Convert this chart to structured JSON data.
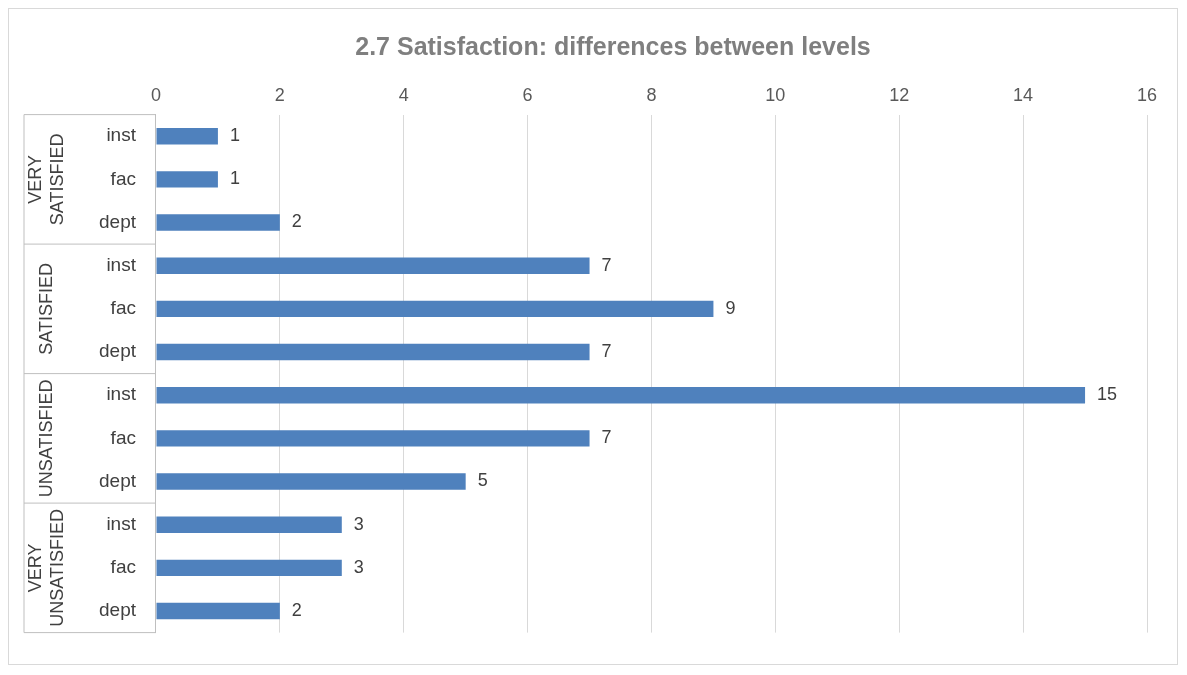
{
  "chart_data": {
    "type": "bar",
    "orientation": "horizontal",
    "title": "2.7 Satisfaction: differences between levels",
    "categories": [
      "inst",
      "fac",
      "dept",
      "inst",
      "fac",
      "dept",
      "inst",
      "fac",
      "dept",
      "inst",
      "fac",
      "dept"
    ],
    "values": [
      1,
      1,
      2,
      7,
      9,
      7,
      15,
      7,
      5,
      3,
      3,
      2
    ],
    "color": "#4f81bd",
    "xlim": [
      0,
      16
    ],
    "xticks": [
      0,
      2,
      4,
      6,
      8,
      10,
      12,
      14,
      16
    ],
    "grid": "x",
    "data_labels": true,
    "legend": false,
    "annotations": [
      "VERY SATISFIED",
      "SATISFIED",
      "UNSATISFIED",
      "VERY UNSATISFIED"
    ]
  }
}
